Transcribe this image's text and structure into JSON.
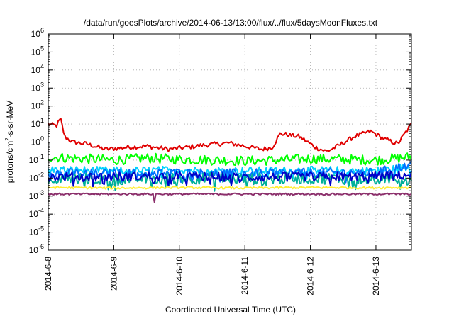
{
  "chart_data": {
    "type": "line",
    "title": "/data/run/goesPlots/archive/2014-06-13/13:00/flux/../flux/5daysMoonFluxes.txt",
    "xlabel": "Coordinated Universal Time (UTC)",
    "ylabel": "protons/cm²-s-sr-MeV",
    "y_scale": "log",
    "ylim": [
      1e-06,
      1000000.0
    ],
    "y_tick_exponents": [
      -6,
      -5,
      -4,
      -3,
      -2,
      -1,
      0,
      1,
      2,
      3,
      4,
      5,
      6
    ],
    "xlim": [
      "2014-06-08 00:00",
      "2014-06-13 13:00"
    ],
    "x_tick_labels": [
      "2014-6-8",
      "2014-6-9",
      "2014-6-10",
      "2014-6-11",
      "2014-6-12",
      "2014-6-13"
    ],
    "grid": true,
    "series": [
      {
        "color": "#e00000",
        "x": [
          "2014-06-08 00:00",
          "2014-06-08 03:00",
          "2014-06-08 04:30",
          "2014-06-08 06:00",
          "2014-06-08 09:00",
          "2014-06-08 14:00",
          "2014-06-08 21:00",
          "2014-06-09 04:00",
          "2014-06-09 12:00",
          "2014-06-09 20:00",
          "2014-06-10 02:00",
          "2014-06-10 10:00",
          "2014-06-10 18:00",
          "2014-06-11 00:00",
          "2014-06-11 06:00",
          "2014-06-11 10:00",
          "2014-06-11 13:00",
          "2014-06-11 20:00",
          "2014-06-12 02:00",
          "2014-06-12 06:00",
          "2014-06-12 10:00",
          "2014-06-12 16:00",
          "2014-06-12 22:00",
          "2014-06-13 03:00",
          "2014-06-13 08:00",
          "2014-06-13 13:00"
        ],
        "values": [
          10,
          8,
          20,
          2,
          1,
          0.8,
          0.4,
          0.5,
          0.6,
          0.4,
          0.5,
          0.7,
          0.9,
          0.6,
          0.4,
          0.5,
          3,
          2,
          0.5,
          0.3,
          0.6,
          2,
          4,
          1.5,
          0.8,
          10
        ]
      },
      {
        "color": "#00ff00",
        "x": [
          "2014-06-08 00:00",
          "2014-06-08 12:00",
          "2014-06-09 00:00",
          "2014-06-09 12:00",
          "2014-06-10 00:00",
          "2014-06-10 12:00",
          "2014-06-11 00:00",
          "2014-06-11 12:00",
          "2014-06-12 00:00",
          "2014-06-12 12:00",
          "2014-06-13 00:00",
          "2014-06-13 13:00"
        ],
        "values": [
          0.15,
          0.12,
          0.1,
          0.13,
          0.11,
          0.1,
          0.09,
          0.1,
          0.12,
          0.11,
          0.1,
          0.15
        ]
      },
      {
        "color": "#00d0ff",
        "x": [
          "2014-06-08 00:00",
          "2014-06-09 00:00",
          "2014-06-10 00:00",
          "2014-06-11 00:00",
          "2014-06-12 00:00",
          "2014-06-13 00:00",
          "2014-06-13 13:00"
        ],
        "values": [
          0.03,
          0.025,
          0.028,
          0.025,
          0.027,
          0.026,
          0.04
        ]
      },
      {
        "color": "#0070ff",
        "x": [
          "2014-06-08 00:00",
          "2014-06-09 00:00",
          "2014-06-10 00:00",
          "2014-06-11 00:00",
          "2014-06-12 00:00",
          "2014-06-13 00:00",
          "2014-06-13 13:00"
        ],
        "values": [
          0.02,
          0.018,
          0.02,
          0.018,
          0.02,
          0.02,
          0.06
        ]
      },
      {
        "color": "#00b09a",
        "x": [
          "2014-06-08 00:00",
          "2014-06-09 00:00",
          "2014-06-10 00:00",
          "2014-06-11 00:00",
          "2014-06-12 00:00",
          "2014-06-13 00:00",
          "2014-06-13 13:00"
        ],
        "values": [
          0.01,
          0.009,
          0.01,
          0.009,
          0.01,
          0.009,
          0.01
        ]
      },
      {
        "color": "#0000c8",
        "x": [
          "2014-06-08 00:00",
          "2014-06-09 00:00",
          "2014-06-10 00:00",
          "2014-06-11 00:00",
          "2014-06-12 00:00",
          "2014-06-13 00:00",
          "2014-06-13 13:00"
        ],
        "values": [
          0.012,
          0.012,
          0.013,
          0.011,
          0.012,
          0.013,
          0.015
        ]
      },
      {
        "color": "#ffee33",
        "x": [
          "2014-06-08 00:00",
          "2014-06-09 00:00",
          "2014-06-10 00:00",
          "2014-06-11 00:00",
          "2014-06-12 00:00",
          "2014-06-13 00:00",
          "2014-06-13 13:00"
        ],
        "values": [
          0.003,
          0.0028,
          0.003,
          0.0028,
          0.003,
          0.0029,
          0.003
        ]
      },
      {
        "color": "#8b2f6b",
        "x": [
          "2014-06-08 00:00",
          "2014-06-09 00:00",
          "2014-06-10 00:00",
          "2014-06-11 00:00",
          "2014-06-12 00:00",
          "2014-06-13 00:00",
          "2014-06-13 13:00"
        ],
        "values": [
          0.0013,
          0.0013,
          0.0013,
          0.0013,
          0.0013,
          0.0013,
          0.0013
        ]
      }
    ]
  }
}
